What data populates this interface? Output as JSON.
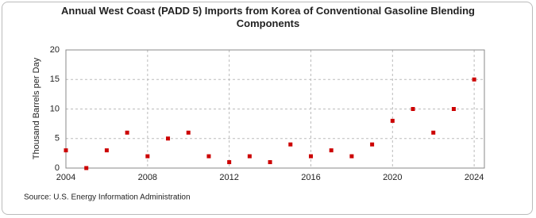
{
  "chart_data": {
    "type": "scatter",
    "title": "Annual West Coast (PADD 5) Imports from Korea of Conventional Gasoline Blending Components",
    "y_label": "Thousand Barrels per Day",
    "source": "Source: U.S. Energy Information Administration",
    "x": [
      2004,
      2005,
      2006,
      2007,
      2008,
      2009,
      2010,
      2011,
      2012,
      2013,
      2014,
      2015,
      2016,
      2017,
      2018,
      2019,
      2020,
      2021,
      2022,
      2023,
      2024
    ],
    "values": [
      3,
      0,
      3,
      6,
      2,
      5,
      6,
      2,
      1,
      2,
      1,
      4,
      2,
      3,
      2,
      4,
      8,
      10,
      6,
      10,
      15
    ],
    "color": "#cc0000",
    "xlim": [
      2004,
      2024.5
    ],
    "xticks": [
      2004,
      2008,
      2012,
      2016,
      2020,
      2024
    ],
    "ylim": [
      0,
      20
    ],
    "yticks": [
      0,
      5,
      10,
      15,
      20
    ],
    "grid": true
  }
}
